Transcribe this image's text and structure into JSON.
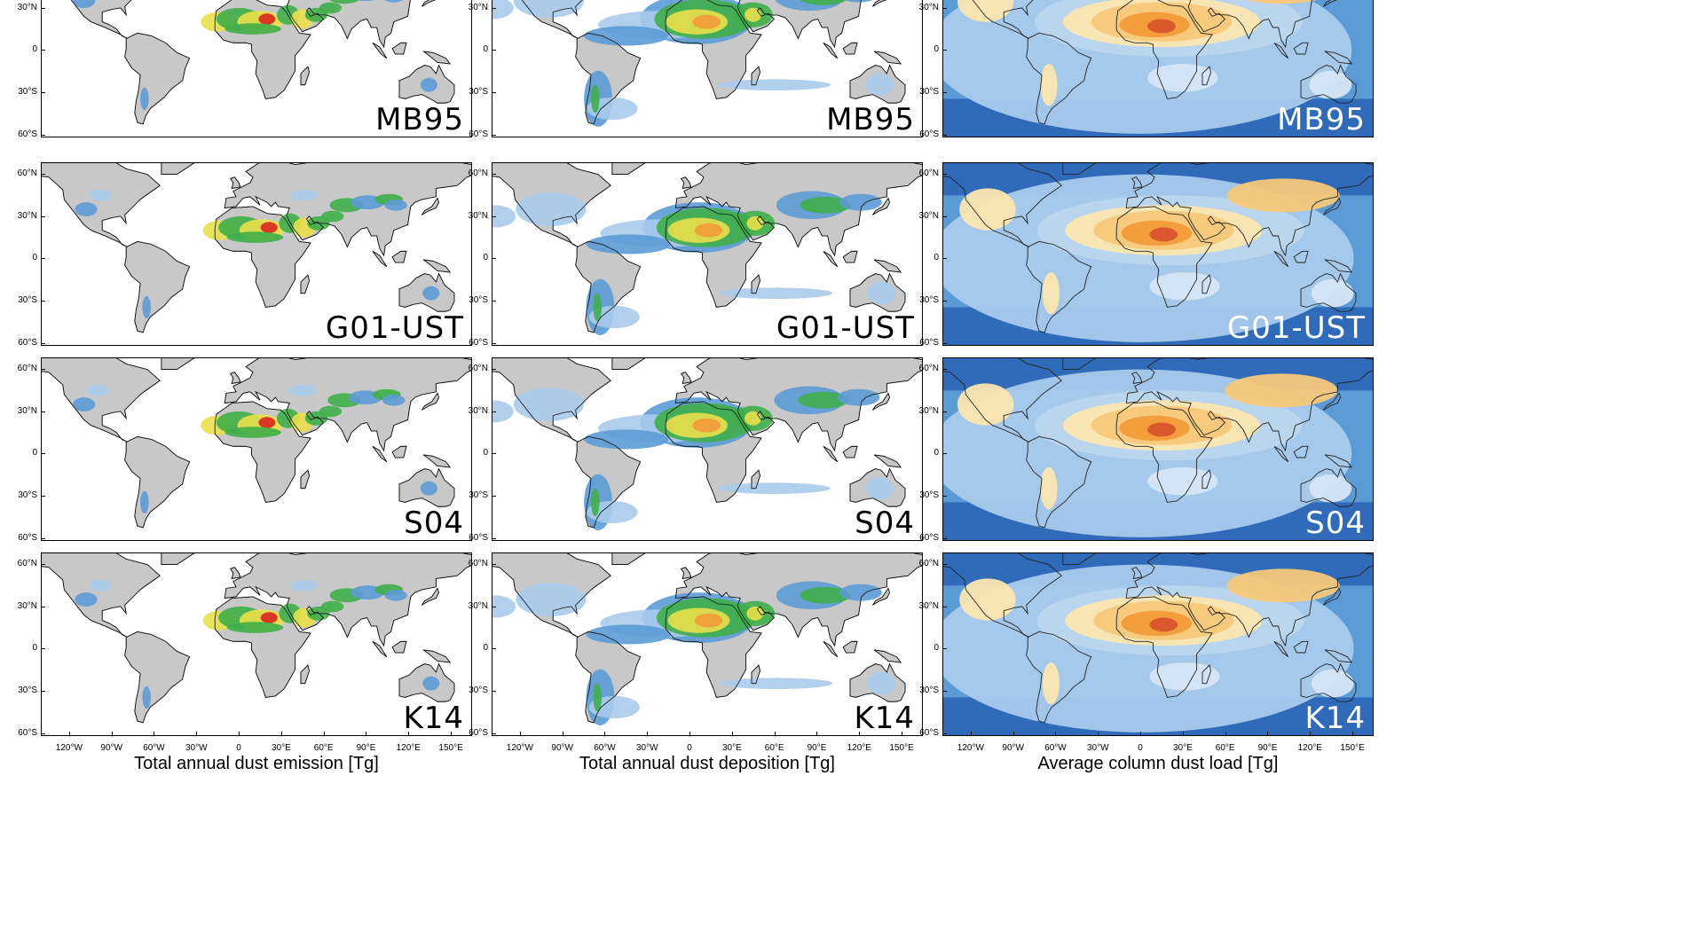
{
  "columns": [
    {
      "title": "Total annual dust emission [Tg]",
      "style": "emission"
    },
    {
      "title": "Total annual dust deposition [Tg]",
      "style": "deposition"
    },
    {
      "title": "Average column dust load [Tg]",
      "style": "load"
    }
  ],
  "rows": [
    {
      "label": "MB95"
    },
    {
      "label": "G01-UST"
    },
    {
      "label": "S04"
    },
    {
      "label": "K14"
    }
  ],
  "lat_labels": [
    "60°N",
    "30°N",
    "0",
    "30°S",
    "60°S"
  ],
  "lon_labels": [
    "120°W",
    "90°W",
    "60°W",
    "30°W",
    "0",
    "30°E",
    "60°E",
    "90°E",
    "120°E",
    "150°E"
  ],
  "colors": {
    "land": "#c8c8c8",
    "ocean_load": "#2f6bb8",
    "blue_light": "#a9cbeb",
    "blue_mid": "#5b9bd5",
    "green": "#3fae49",
    "yellow": "#e9e04a",
    "orange": "#f39a3a",
    "red": "#d8261e"
  }
}
